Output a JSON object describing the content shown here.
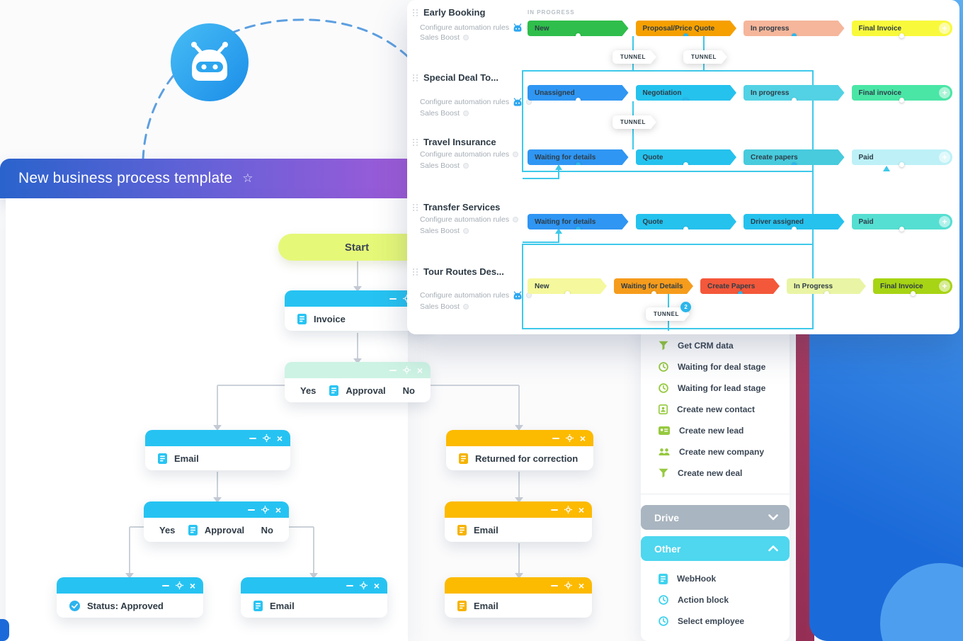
{
  "colors": {
    "brand_blue": "#2aa7f0",
    "title_gradient_start": "#2a63cc",
    "title_gradient_end": "#9e5ad8",
    "node_blue": "#26c3f2",
    "node_orange": "#fcba00",
    "node_mint": "#cdf3e4",
    "start_green": "#e6f878",
    "tunnel_line": "#3ec9ea",
    "sidebar_green": "#96c93f",
    "sidebar_cyan": "#3fd2ee",
    "drive_gray": "#a9b5c0",
    "other_cyan": "#4ed7ef"
  },
  "pipeline_panel": {
    "in_progress_label": "IN PROGRESS",
    "sections": [
      {
        "name": "Early Booking",
        "configure_label": "Configure automation rules",
        "boost_label": "Sales Boost",
        "robot": true,
        "stages": [
          {
            "label": "New",
            "bg": "#2fbe4b",
            "dot": "white"
          },
          {
            "label": "Proposal/Price Quote",
            "bg": "#f5a000",
            "dot": "cyan"
          },
          {
            "label": "In progress",
            "bg": "#f5b69b",
            "dot": "cyan"
          },
          {
            "label": "Final Invoice",
            "bg": "#f9f93c",
            "dot": "white",
            "last": true
          }
        ]
      },
      {
        "name": "Special Deal To...",
        "configure_label": "Configure automation rules",
        "boost_label": "Sales Boost",
        "robot": true,
        "stages": [
          {
            "label": "Unassigned",
            "bg": "#2f96f3",
            "dot": "white"
          },
          {
            "label": "Negotiation",
            "bg": "#25c2ee",
            "dot": "cyan"
          },
          {
            "label": "In progress",
            "bg": "#52d2e4",
            "dot": "white"
          },
          {
            "label": "Final invoice",
            "bg": "#4ae6a6",
            "dot": "white",
            "last": true
          }
        ]
      },
      {
        "name": "Travel Insurance",
        "configure_label": "Configure automation rules",
        "boost_label": "Sales Boost",
        "robot": false,
        "stages": [
          {
            "label": "Waiting for details",
            "bg": "#2f96f3",
            "dot": "cyan"
          },
          {
            "label": "Quote",
            "bg": "#25c2ee",
            "dot": "white"
          },
          {
            "label": "Create papers",
            "bg": "#47cbdd",
            "dot": "cyan"
          },
          {
            "label": "Paid",
            "bg": "#bdf1f7",
            "dot": "white",
            "last": true
          }
        ]
      },
      {
        "name": "Transfer Services",
        "configure_label": "Configure automation rules",
        "boost_label": "Sales Boost",
        "robot": false,
        "stages": [
          {
            "label": "Waiting for details",
            "bg": "#2f96f3",
            "dot": "cyan"
          },
          {
            "label": "Quote",
            "bg": "#25c2ee",
            "dot": "white"
          },
          {
            "label": "Driver assigned",
            "bg": "#25c2ee",
            "dot": "white"
          },
          {
            "label": "Paid",
            "bg": "#55dfd2",
            "dot": "white",
            "last": true
          }
        ]
      },
      {
        "name": "Tour Routes Des...",
        "configure_label": "Configure automation rules",
        "boost_label": "Sales Boost",
        "robot": true,
        "stages": [
          {
            "label": "New",
            "bg": "#f5f89c",
            "dot": "white"
          },
          {
            "label": "Waiting for Details",
            "bg": "#f69c1c",
            "dot": "white"
          },
          {
            "label": "Create Papers",
            "bg": "#f4583a",
            "dot": "cyan"
          },
          {
            "label": "In Progress",
            "bg": "#e9f5a4",
            "dot": "white"
          },
          {
            "label": "Final Invoice",
            "bg": "#a7d414",
            "dot": "white",
            "last": true
          }
        ]
      }
    ],
    "tunnels": [
      {
        "label": "TUNNEL"
      },
      {
        "label": "TUNNEL"
      },
      {
        "label": "TUNNEL"
      },
      {
        "label": "TUNNEL",
        "badge": "2"
      }
    ]
  },
  "process_window": {
    "title": "New business process template",
    "favorite_star": "☆",
    "nodes": {
      "start": {
        "label": "Start"
      },
      "invoice": {
        "label": "Invoice"
      },
      "approval1": {
        "label": "Approval",
        "yes": "Yes",
        "no": "No"
      },
      "email1": {
        "label": "Email"
      },
      "returned": {
        "label": "Returned for correction"
      },
      "approval2": {
        "label": "Approval",
        "yes": "Yes",
        "no": "No"
      },
      "email2": {
        "label": "Email"
      },
      "status": {
        "label": "Status: Approved"
      },
      "email3": {
        "label": "Email"
      },
      "email4": {
        "label": "Email"
      }
    }
  },
  "sidebar": {
    "crm_items": [
      {
        "icon": "funnel",
        "label": "Get CRM data"
      },
      {
        "icon": "clock",
        "label": "Waiting for deal stage"
      },
      {
        "icon": "clock",
        "label": "Waiting for lead stage"
      },
      {
        "icon": "contact-card",
        "label": "Create new contact"
      },
      {
        "icon": "id-card",
        "label": "Create new lead"
      },
      {
        "icon": "people",
        "label": "Create new company"
      },
      {
        "icon": "funnel",
        "label": "Create new deal"
      }
    ],
    "drive_label": "Drive",
    "other_label": "Other",
    "other_items": [
      {
        "icon": "document",
        "label": "WebHook"
      },
      {
        "icon": "clock",
        "label": "Action block"
      },
      {
        "icon": "clock",
        "label": "Select employee"
      }
    ]
  }
}
